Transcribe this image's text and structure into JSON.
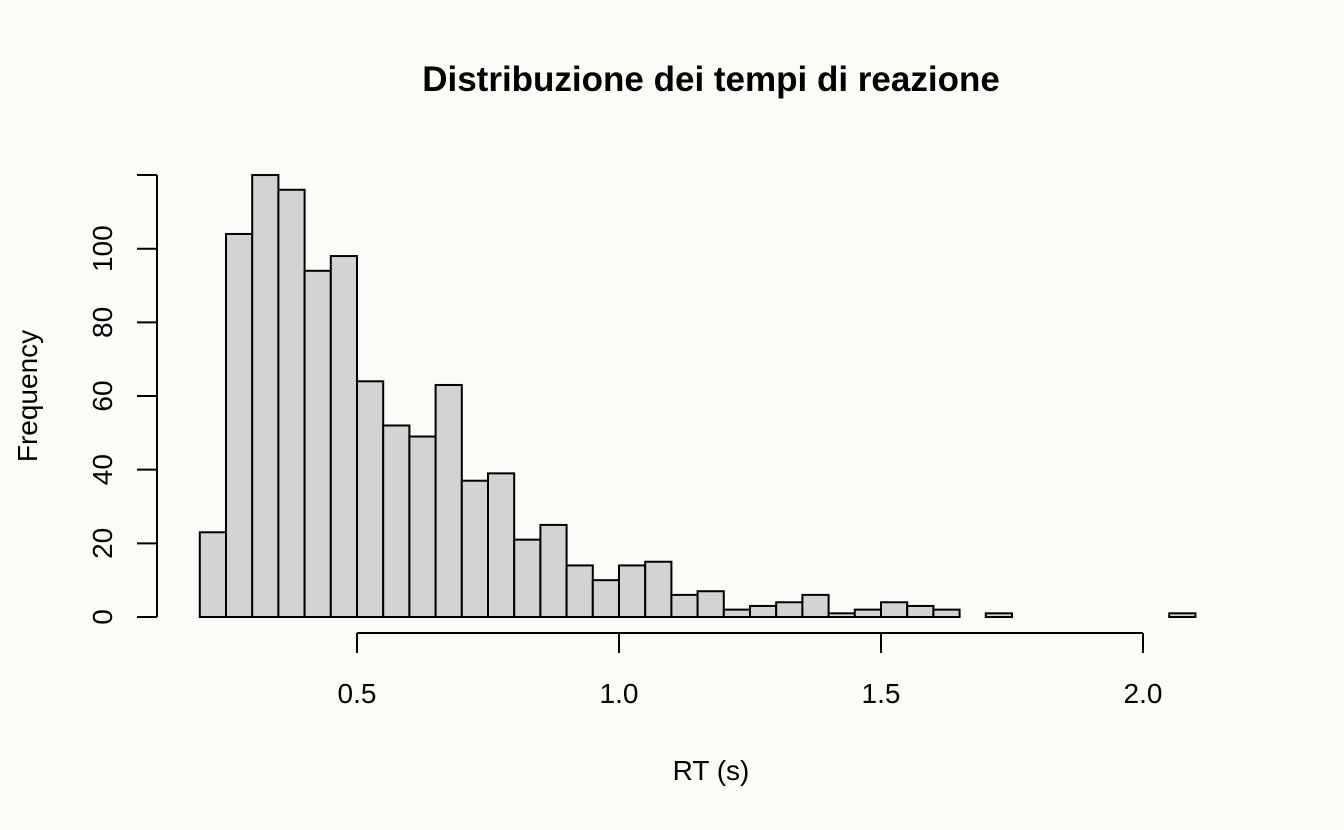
{
  "chart_data": {
    "type": "bar",
    "subtype": "histogram",
    "title": "Distribuzione dei tempi di reazione",
    "xlabel": "RT (s)",
    "ylabel": "Frequency",
    "bin_width": 0.05,
    "bin_edges_start": 0.2,
    "values": [
      23,
      104,
      120,
      116,
      94,
      98,
      64,
      52,
      49,
      63,
      37,
      39,
      21,
      25,
      14,
      10,
      14,
      15,
      6,
      7,
      2,
      3,
      4,
      6,
      1,
      2,
      4,
      3,
      2,
      0,
      1,
      0,
      0,
      0,
      0,
      0,
      0,
      1
    ],
    "x_ticks": [
      0.5,
      1.0,
      1.5,
      2.0
    ],
    "x_tick_labels": [
      "0.5",
      "1.0",
      "1.5",
      "2.0"
    ],
    "y_ticks": [
      0,
      20,
      40,
      60,
      80,
      100
    ],
    "y_tick_labels": [
      "0",
      "20",
      "40",
      "60",
      "80",
      "100"
    ],
    "xlim": [
      0.2,
      2.15
    ],
    "ylim": [
      0,
      120
    ],
    "grid": false,
    "bar_fill": "#d3d3d3",
    "bar_stroke": "#000000",
    "background": "#fcfbf7"
  }
}
